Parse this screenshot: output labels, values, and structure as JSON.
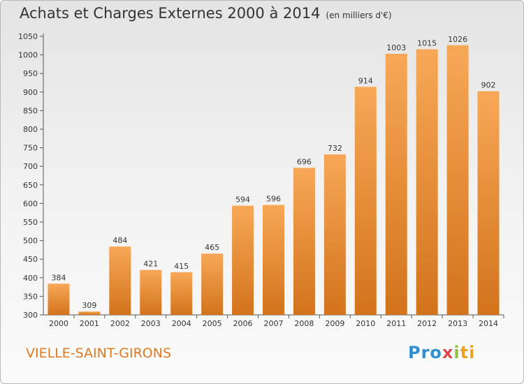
{
  "header": {
    "title": "Achats et Charges Externes 2000 à 2014",
    "subtitle": "(en milliers d'€)"
  },
  "footer": {
    "commune": "VIELLE-SAINT-GIRONS",
    "logo_text": [
      "Pro",
      "x",
      "i",
      "ti"
    ]
  },
  "colors": {
    "bar_light": "#f7a857",
    "bar_dark": "#d3731c",
    "label_text": "#333333",
    "commune_text": "#e07a22"
  },
  "chart_data": {
    "type": "bar",
    "title": "Achats et Charges Externes 2000 à 2014",
    "subtitle": "(en milliers d'€)",
    "xlabel": "",
    "ylabel": "",
    "categories": [
      "2000",
      "2001",
      "2002",
      "2003",
      "2004",
      "2005",
      "2006",
      "2007",
      "2008",
      "2009",
      "2010",
      "2011",
      "2012",
      "2013",
      "2014"
    ],
    "values": [
      384,
      309,
      484,
      421,
      415,
      465,
      594,
      596,
      696,
      732,
      914,
      1003,
      1015,
      1026,
      902
    ],
    "ylim": [
      300,
      1050
    ],
    "yticks": [
      300,
      350,
      400,
      450,
      500,
      550,
      600,
      650,
      700,
      750,
      800,
      850,
      900,
      950,
      1000,
      1050
    ],
    "grid": false,
    "data_labels": true
  }
}
